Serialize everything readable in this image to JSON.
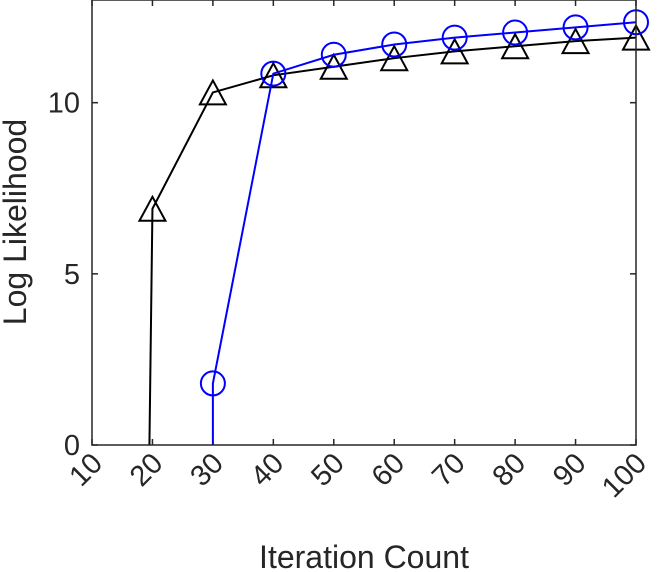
{
  "chart_data": {
    "type": "line",
    "title": "",
    "xlabel": "Iteration Count",
    "ylabel": "Log Likelihood",
    "xlim": [
      10,
      100
    ],
    "ylim": [
      0,
      13
    ],
    "x_ticks": [
      "10",
      "20",
      "30",
      "40",
      "50",
      "60",
      "70",
      "80",
      "90",
      "100"
    ],
    "y_ticks": [
      "0",
      "5",
      "10"
    ],
    "grid": false,
    "series": [
      {
        "marker": "triangle",
        "color": "#000000",
        "points": [
          [
            19.5,
            0
          ],
          [
            20,
            6.9
          ],
          [
            30,
            10.3
          ],
          [
            40,
            10.8
          ],
          [
            50,
            11.05
          ],
          [
            60,
            11.3
          ],
          [
            70,
            11.5
          ],
          [
            80,
            11.65
          ],
          [
            90,
            11.8
          ],
          [
            100,
            11.9
          ]
        ]
      },
      {
        "marker": "circle",
        "color": "#0000ff",
        "points": [
          [
            30,
            0
          ],
          [
            30,
            1.8
          ],
          [
            40,
            10.85
          ],
          [
            50,
            11.4
          ],
          [
            60,
            11.7
          ],
          [
            70,
            11.9
          ],
          [
            80,
            12.05
          ],
          [
            90,
            12.2
          ],
          [
            100,
            12.35
          ]
        ]
      }
    ]
  }
}
